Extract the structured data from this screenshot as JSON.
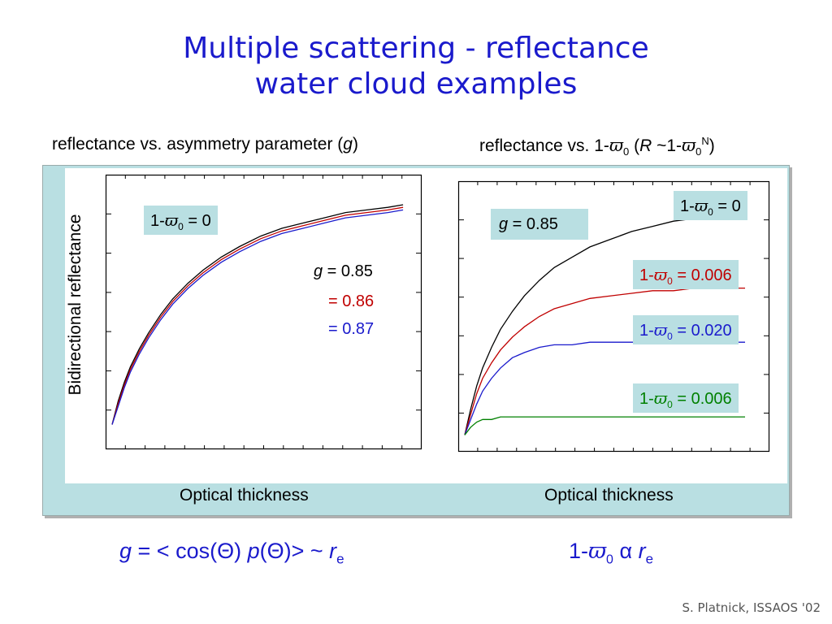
{
  "slide": {
    "title_line1": "Multiple scattering - reflectance",
    "title_line2": "water cloud examples",
    "credit": "S. Platnick, ISSAOS '02"
  },
  "left": {
    "subtitle_pre": "reflectance vs. asymmetry parameter (",
    "subtitle_g": "g",
    "subtitle_post": ")",
    "xlabel": "Optical thickness",
    "ylabel": "Bidirectional reflectance",
    "box_pre": "1-",
    "box_sub": "0",
    "box_post": " = 0",
    "ann_g_label": "g",
    "ann1": " = 0.85",
    "ann2": "= 0.86",
    "ann3": "= 0.87"
  },
  "right": {
    "subtitle_pre": "reflectance vs. 1-",
    "subtitle_sub": "0",
    "subtitle_mid1": " (",
    "subtitle_R": "R",
    "subtitle_mid2": " ~1-",
    "subtitle_sub2": "0",
    "subtitle_sup": "N",
    "subtitle_post": ")",
    "xlabel": "Optical thickness",
    "g_box_label": "g",
    "g_box_value": " = 0.85",
    "box_pre": "1-",
    "box_sub": "0",
    "box1": " = 0",
    "box2": " = 0.006",
    "box3": " = 0.020",
    "box4": " = 0.006"
  },
  "formulas": {
    "left_g": "g",
    "left_mid": " = < cos(Θ) ",
    "left_p": "p",
    "left_rest": "(Θ)> ~ ",
    "left_r": "r",
    "left_sub": "e",
    "right_pre": "1-",
    "right_sub": "0",
    "right_alpha": " α ",
    "right_r": "r",
    "right_rsub": "e"
  },
  "chart_data": [
    {
      "type": "line",
      "title": "reflectance vs. asymmetry parameter (g)",
      "xlabel": "Optical thickness",
      "ylabel": "Bidirectional reflectance",
      "xlim": [
        0,
        1
      ],
      "ylim": [
        0,
        1
      ],
      "grid": false,
      "legend": "right-middle",
      "series": [
        {
          "name": "g = 0.85",
          "color": "#000000",
          "x": [
            0,
            0.02,
            0.04,
            0.06,
            0.09,
            0.12,
            0.16,
            0.2,
            0.25,
            0.3,
            0.36,
            0.42,
            0.49,
            0.56,
            0.63,
            0.7,
            0.77,
            0.84,
            0.91,
            0.96
          ],
          "y": [
            0.07,
            0.16,
            0.23,
            0.29,
            0.36,
            0.42,
            0.49,
            0.55,
            0.61,
            0.66,
            0.71,
            0.75,
            0.79,
            0.82,
            0.84,
            0.86,
            0.88,
            0.89,
            0.9,
            0.91
          ]
        },
        {
          "name": "= 0.86",
          "color": "#c00000",
          "x": [
            0,
            0.02,
            0.04,
            0.06,
            0.09,
            0.12,
            0.16,
            0.2,
            0.25,
            0.3,
            0.36,
            0.42,
            0.49,
            0.56,
            0.63,
            0.7,
            0.77,
            0.84,
            0.91,
            0.96
          ],
          "y": [
            0.07,
            0.15,
            0.22,
            0.28,
            0.35,
            0.41,
            0.48,
            0.54,
            0.6,
            0.65,
            0.7,
            0.74,
            0.78,
            0.81,
            0.83,
            0.85,
            0.87,
            0.88,
            0.89,
            0.9
          ]
        },
        {
          "name": "= 0.87",
          "color": "#1a1acc",
          "x": [
            0,
            0.02,
            0.04,
            0.06,
            0.09,
            0.12,
            0.16,
            0.2,
            0.25,
            0.3,
            0.36,
            0.42,
            0.49,
            0.56,
            0.63,
            0.7,
            0.77,
            0.84,
            0.91,
            0.96
          ],
          "y": [
            0.07,
            0.14,
            0.21,
            0.27,
            0.34,
            0.4,
            0.47,
            0.53,
            0.59,
            0.64,
            0.69,
            0.73,
            0.77,
            0.8,
            0.82,
            0.84,
            0.86,
            0.87,
            0.88,
            0.89
          ]
        }
      ]
    },
    {
      "type": "line",
      "title": "reflectance vs. 1-ϖ0 (R ~1-ϖ0^N)",
      "xlabel": "Optical thickness",
      "xlim": [
        0,
        1
      ],
      "ylim": [
        0,
        1
      ],
      "grid": false,
      "series": [
        {
          "name": "1-ϖ0 = 0",
          "color": "#000000",
          "x": [
            0,
            0.02,
            0.04,
            0.06,
            0.09,
            0.12,
            0.16,
            0.2,
            0.25,
            0.3,
            0.36,
            0.42,
            0.49,
            0.56,
            0.63,
            0.7,
            0.77,
            0.84,
            0.91,
            0.94
          ],
          "y": [
            0.04,
            0.14,
            0.23,
            0.3,
            0.38,
            0.45,
            0.52,
            0.58,
            0.64,
            0.69,
            0.73,
            0.77,
            0.8,
            0.83,
            0.85,
            0.87,
            0.88,
            0.89,
            0.9,
            0.9
          ]
        },
        {
          "name": "1-ϖ0 = 0.006",
          "color": "#c00000",
          "x": [
            0,
            0.02,
            0.04,
            0.06,
            0.09,
            0.12,
            0.16,
            0.2,
            0.25,
            0.3,
            0.36,
            0.42,
            0.49,
            0.56,
            0.63,
            0.7,
            0.77,
            0.84,
            0.91,
            0.94
          ],
          "y": [
            0.04,
            0.12,
            0.2,
            0.26,
            0.32,
            0.37,
            0.42,
            0.46,
            0.5,
            0.53,
            0.55,
            0.57,
            0.58,
            0.59,
            0.6,
            0.6,
            0.61,
            0.61,
            0.61,
            0.61
          ]
        },
        {
          "name": "1-ϖ0 = 0.020",
          "color": "#1a1acc",
          "x": [
            0,
            0.02,
            0.04,
            0.06,
            0.09,
            0.12,
            0.16,
            0.2,
            0.25,
            0.3,
            0.36,
            0.42,
            0.49,
            0.56,
            0.63,
            0.7,
            0.77,
            0.84,
            0.91,
            0.94
          ],
          "y": [
            0.04,
            0.1,
            0.16,
            0.21,
            0.26,
            0.3,
            0.34,
            0.36,
            0.38,
            0.39,
            0.39,
            0.4,
            0.4,
            0.4,
            0.4,
            0.4,
            0.4,
            0.4,
            0.4,
            0.4
          ]
        },
        {
          "name": "1-ϖ0 = 0.006",
          "color": "#008000",
          "x": [
            0,
            0.02,
            0.04,
            0.06,
            0.09,
            0.12,
            0.16,
            0.2,
            0.3,
            0.4,
            0.5,
            0.6,
            0.7,
            0.8,
            0.94
          ],
          "y": [
            0.04,
            0.07,
            0.09,
            0.1,
            0.1,
            0.11,
            0.11,
            0.11,
            0.11,
            0.11,
            0.11,
            0.11,
            0.11,
            0.11,
            0.11
          ]
        }
      ]
    }
  ]
}
